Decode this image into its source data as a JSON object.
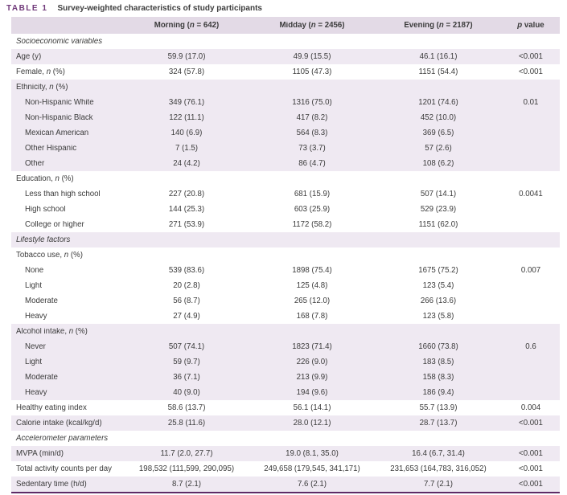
{
  "colors": {
    "title": "#70397a",
    "band": "#e3dae6",
    "shade": "#efe9f2",
    "border": "#5e2b66",
    "text": "#3b3b3b"
  },
  "table": {
    "tag": "TABLE 1",
    "title": "Survey-weighted characteristics of study participants",
    "columns": [
      "Morning (n = 642)",
      "Midday (n = 2456)",
      "Evening (n = 2187)",
      "p value"
    ],
    "rows": [
      {
        "section": true,
        "label": "Socioeconomic variables",
        "shaded": false
      },
      {
        "label": "Age (y)",
        "values": [
          "59.9 (17.0)",
          "49.9 (15.5)",
          "46.1 (16.1)"
        ],
        "p": "<0.001",
        "shaded": true
      },
      {
        "label": "Female, n (%)",
        "values": [
          "324 (57.8)",
          "1105 (47.3)",
          "1151 (54.4)"
        ],
        "p": "<0.001",
        "shaded": false
      },
      {
        "label": "Ethnicity, n (%)",
        "shaded": true
      },
      {
        "indent": true,
        "label": "Non-Hispanic White",
        "values": [
          "349 (76.1)",
          "1316 (75.0)",
          "1201 (74.6)"
        ],
        "p": "0.01",
        "shaded": true
      },
      {
        "indent": true,
        "label": "Non-Hispanic Black",
        "values": [
          "122 (11.1)",
          "417 (8.2)",
          "452 (10.0)"
        ],
        "shaded": true
      },
      {
        "indent": true,
        "label": "Mexican American",
        "values": [
          "140 (6.9)",
          "564 (8.3)",
          "369 (6.5)"
        ],
        "shaded": true
      },
      {
        "indent": true,
        "label": "Other Hispanic",
        "values": [
          "7 (1.5)",
          "73 (3.7)",
          "57 (2.6)"
        ],
        "shaded": true
      },
      {
        "indent": true,
        "label": "Other",
        "values": [
          "24 (4.2)",
          "86 (4.7)",
          "108 (6.2)"
        ],
        "shaded": true
      },
      {
        "label": "Education, n (%)",
        "shaded": false
      },
      {
        "indent": true,
        "label": "Less than high school",
        "values": [
          "227 (20.8)",
          "681 (15.9)",
          "507 (14.1)"
        ],
        "p": "0.0041",
        "shaded": false
      },
      {
        "indent": true,
        "label": "High school",
        "values": [
          "144 (25.3)",
          "603 (25.9)",
          "529 (23.9)"
        ],
        "shaded": false
      },
      {
        "indent": true,
        "label": "College or higher",
        "values": [
          "271 (53.9)",
          "1172 (58.2)",
          "1151 (62.0)"
        ],
        "shaded": false
      },
      {
        "section": true,
        "label": "Lifestyle factors",
        "shaded": true
      },
      {
        "label": "Tobacco use, n (%)",
        "shaded": false
      },
      {
        "indent": true,
        "label": "None",
        "values": [
          "539 (83.6)",
          "1898 (75.4)",
          "1675 (75.2)"
        ],
        "p": "0.007",
        "shaded": false
      },
      {
        "indent": true,
        "label": "Light",
        "values": [
          "20 (2.8)",
          "125 (4.8)",
          "123 (5.4)"
        ],
        "shaded": false
      },
      {
        "indent": true,
        "label": "Moderate",
        "values": [
          "56 (8.7)",
          "265 (12.0)",
          "266 (13.6)"
        ],
        "shaded": false
      },
      {
        "indent": true,
        "label": "Heavy",
        "values": [
          "27 (4.9)",
          "168 (7.8)",
          "123 (5.8)"
        ],
        "shaded": false
      },
      {
        "label": "Alcohol intake, n (%)",
        "shaded": true
      },
      {
        "indent": true,
        "label": "Never",
        "values": [
          "507 (74.1)",
          "1823 (71.4)",
          "1660 (73.8)"
        ],
        "p": "0.6",
        "shaded": true
      },
      {
        "indent": true,
        "label": "Light",
        "values": [
          "59 (9.7)",
          "226 (9.0)",
          "183 (8.5)"
        ],
        "shaded": true
      },
      {
        "indent": true,
        "label": "Moderate",
        "values": [
          "36 (7.1)",
          "213 (9.9)",
          "158 (8.3)"
        ],
        "shaded": true
      },
      {
        "indent": true,
        "label": "Heavy",
        "values": [
          "40 (9.0)",
          "194 (9.6)",
          "186 (9.4)"
        ],
        "shaded": true
      },
      {
        "label": "Healthy eating index",
        "values": [
          "58.6 (13.7)",
          "56.1 (14.1)",
          "55.7 (13.9)"
        ],
        "p": "0.004",
        "shaded": false
      },
      {
        "label": "Calorie intake (kcal/kg/d)",
        "values": [
          "25.8 (11.6)",
          "28.0 (12.1)",
          "28.7 (13.7)"
        ],
        "p": "<0.001",
        "shaded": true
      },
      {
        "section": true,
        "label": "Accelerometer parameters",
        "shaded": false
      },
      {
        "label": "MVPA (min/d)",
        "values": [
          "11.7 (2.0, 27.7)",
          "19.0 (8.1, 35.0)",
          "16.4 (6.7, 31.4)"
        ],
        "p": "<0.001",
        "shaded": true
      },
      {
        "label": "Total activity counts per day",
        "values": [
          "198,532 (111,599, 290,095)",
          "249,658 (179,545, 341,171)",
          "231,653 (164,783, 316,052)"
        ],
        "p": "<0.001",
        "shaded": false
      },
      {
        "label": "Sedentary time (h/d)",
        "values": [
          "8.7 (2.1)",
          "7.6 (2.1)",
          "7.7 (2.1)"
        ],
        "p": "<0.001",
        "shaded": true
      }
    ]
  }
}
